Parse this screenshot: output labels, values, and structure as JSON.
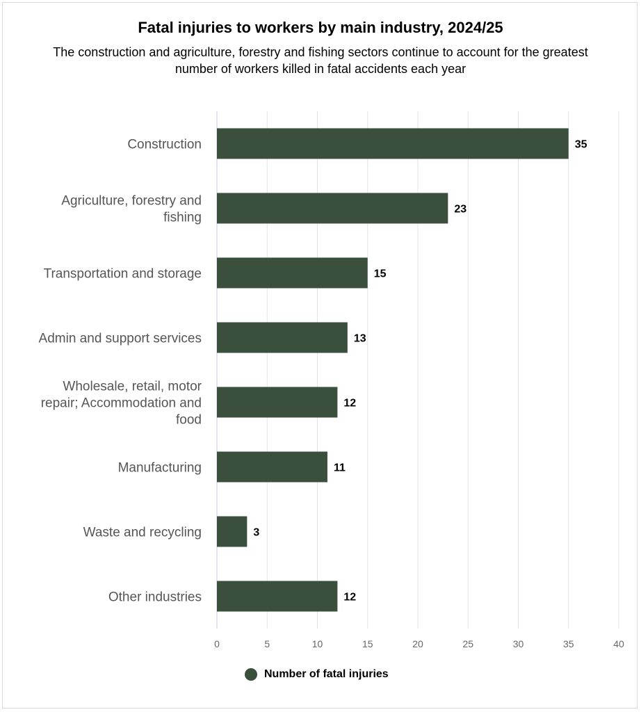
{
  "chart_data": {
    "type": "bar",
    "orientation": "horizontal",
    "title": "Fatal injuries to workers by main industry, 2024/25",
    "subtitle": "The construction and agriculture, forestry and fishing sectors continue to account for the greatest number of workers killed in fatal accidents each year",
    "categories": [
      [
        "Construction"
      ],
      [
        "Agriculture, forestry and",
        "fishing"
      ],
      [
        "Transportation and storage"
      ],
      [
        "Admin and support services"
      ],
      [
        "Wholesale, retail, motor",
        "repair; Accommodation and",
        "food"
      ],
      [
        "Manufacturing"
      ],
      [
        "Waste and recycling"
      ],
      [
        "Other industries"
      ]
    ],
    "series": [
      {
        "name": "Number of fatal injuries",
        "values": [
          35,
          23,
          15,
          13,
          12,
          11,
          3,
          12
        ],
        "color": "#3a4f3c"
      }
    ],
    "xlim": [
      0,
      40
    ],
    "xticks": [
      0,
      5,
      10,
      15,
      20,
      25,
      30,
      35,
      40
    ],
    "grid": true,
    "data_labels": true,
    "legend_position": "bottom"
  }
}
